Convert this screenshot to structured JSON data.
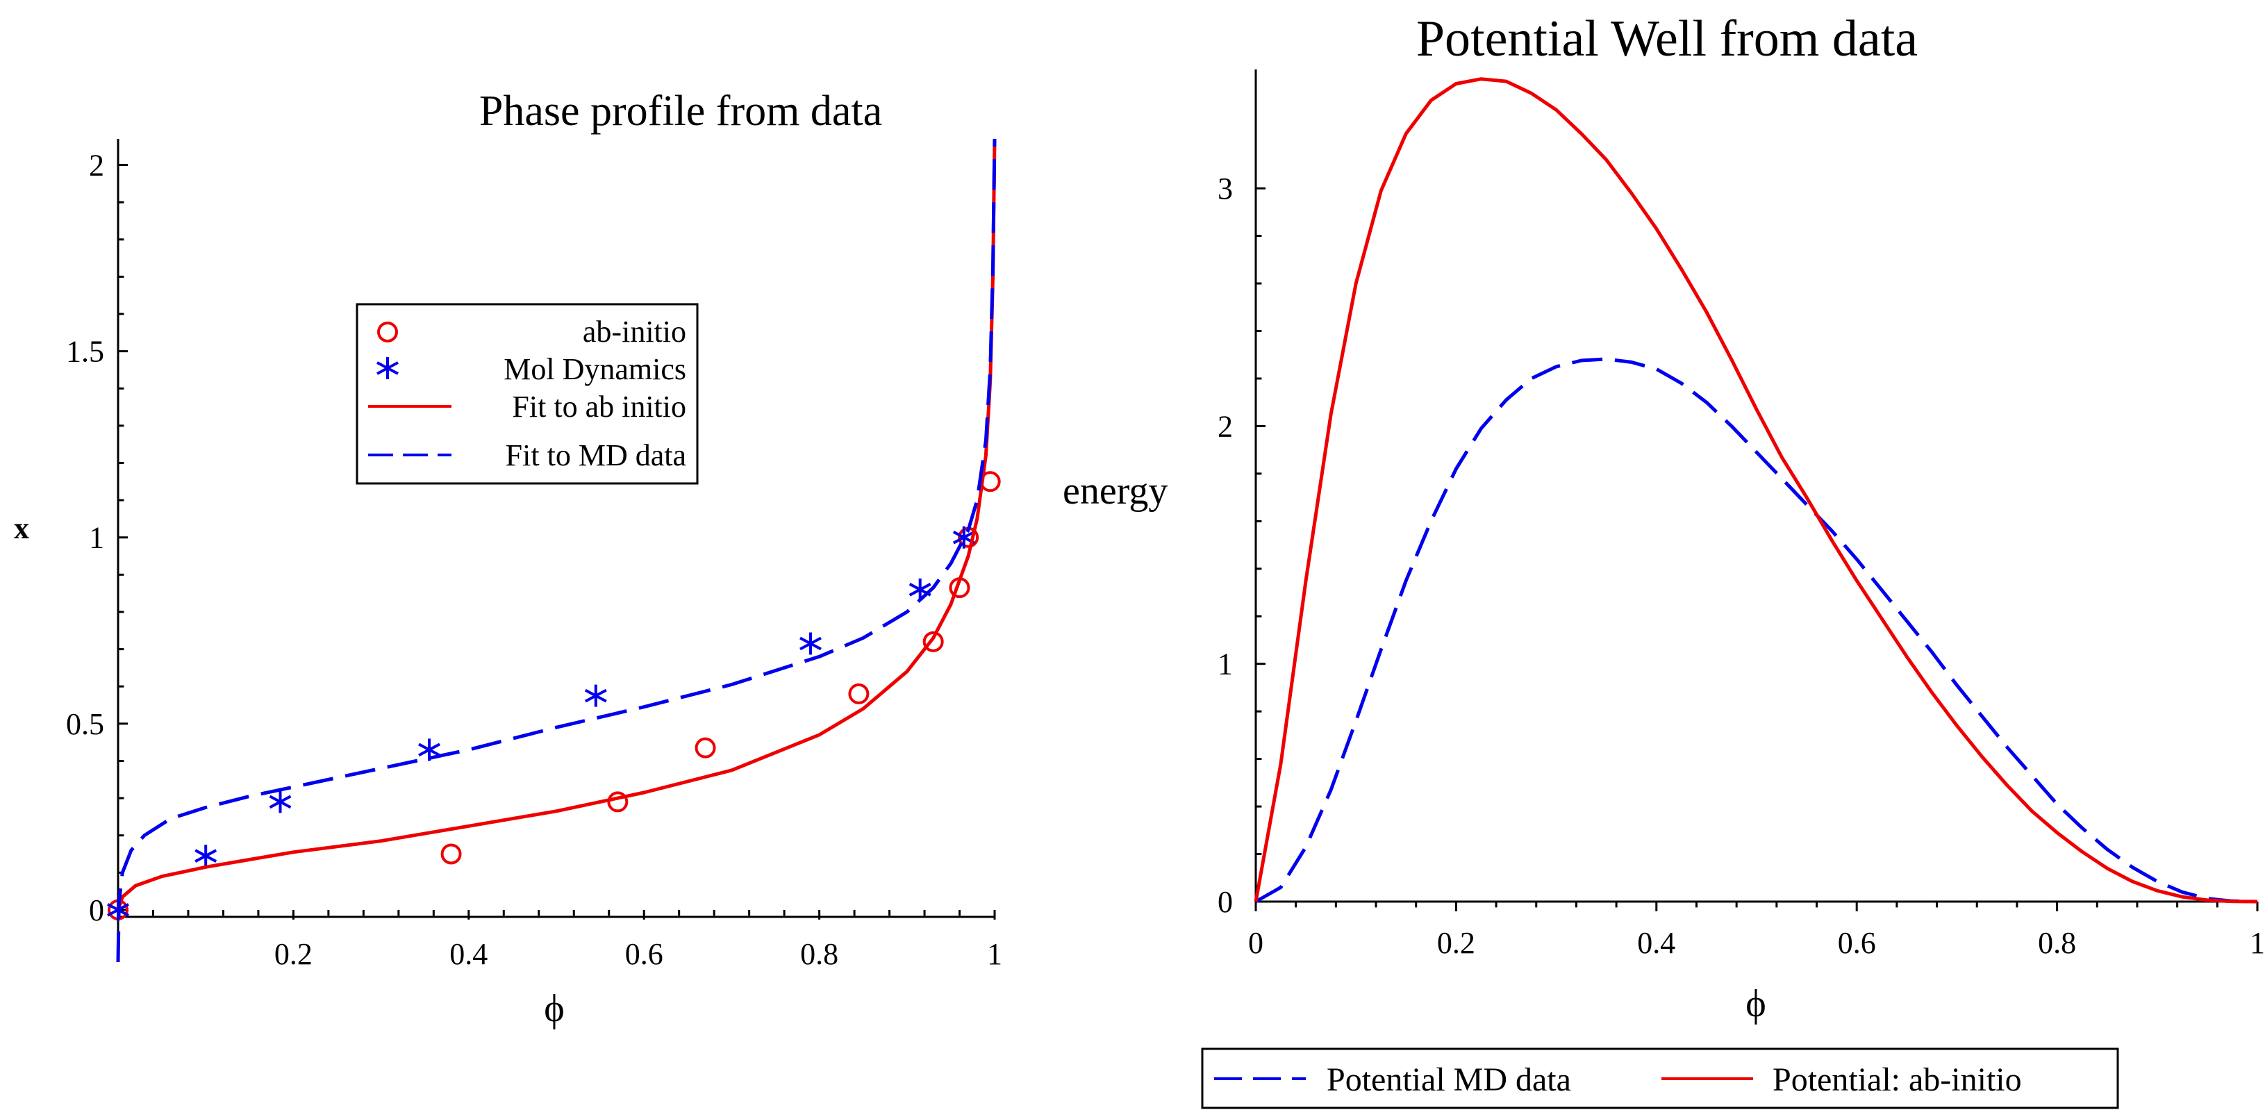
{
  "chart_data": [
    {
      "type": "line",
      "title": "Phase profile from data",
      "xlabel": "ϕ",
      "ylabel": "x",
      "xlim": [
        0,
        1
      ],
      "ylim": [
        -0.14,
        2.07
      ],
      "x_ticks": [
        {
          "value": 0.2,
          "label": "0.2"
        },
        {
          "value": 0.4,
          "label": "0.4"
        },
        {
          "value": 0.6,
          "label": "0.6"
        },
        {
          "value": 0.8,
          "label": "0.8"
        },
        {
          "value": 1,
          "label": "1"
        }
      ],
      "y_ticks": [
        {
          "value": 0,
          "label": "0"
        },
        {
          "value": 0.5,
          "label": "0.5"
        },
        {
          "value": 1,
          "label": "1"
        },
        {
          "value": 1.5,
          "label": "1.5"
        },
        {
          "value": 2,
          "label": "2"
        }
      ],
      "legend_position": "upper-middle",
      "series": [
        {
          "name": "ab-initio",
          "kind": "scatter",
          "marker": "circle",
          "color": "#ee0000",
          "x": [
            0.0,
            0.38,
            0.57,
            0.67,
            0.845,
            0.93,
            0.96,
            0.97,
            0.995
          ],
          "y": [
            0.0,
            0.15,
            0.29,
            0.435,
            0.58,
            0.72,
            0.865,
            1.0,
            1.15
          ]
        },
        {
          "name": "Mol Dynamics",
          "kind": "scatter",
          "marker": "star",
          "color": "#0000ee",
          "x": [
            0.0,
            0.1,
            0.185,
            0.355,
            0.545,
            0.79,
            0.915,
            0.965
          ],
          "y": [
            0.0,
            0.145,
            0.29,
            0.43,
            0.575,
            0.715,
            0.86,
            1.0
          ]
        },
        {
          "name": "Fit to ab initio",
          "kind": "line",
          "dash": "solid",
          "color": "#ee0000",
          "x": [
            0.0,
            0.005,
            0.02,
            0.05,
            0.1,
            0.15,
            0.2,
            0.3,
            0.4,
            0.5,
            0.6,
            0.7,
            0.8,
            0.85,
            0.9,
            0.93,
            0.95,
            0.97,
            0.98,
            0.99,
            0.995,
            0.998,
            1.0
          ],
          "y": [
            0.0,
            0.035,
            0.065,
            0.09,
            0.115,
            0.135,
            0.155,
            0.185,
            0.225,
            0.265,
            0.315,
            0.375,
            0.47,
            0.54,
            0.64,
            0.73,
            0.82,
            0.95,
            1.05,
            1.22,
            1.42,
            1.7,
            2.07
          ]
        },
        {
          "name": "Fit to MD data",
          "kind": "line",
          "dash": "long-dash",
          "color": "#0000ee",
          "x": [
            0.0,
            0.001,
            0.005,
            0.015,
            0.03,
            0.06,
            0.1,
            0.15,
            0.2,
            0.3,
            0.4,
            0.5,
            0.6,
            0.7,
            0.8,
            0.85,
            0.9,
            0.93,
            0.95,
            0.97,
            0.98,
            0.99,
            0.995,
            0.998,
            1.0
          ],
          "y": [
            -0.14,
            0.02,
            0.1,
            0.16,
            0.2,
            0.245,
            0.275,
            0.305,
            0.33,
            0.38,
            0.43,
            0.49,
            0.545,
            0.605,
            0.68,
            0.73,
            0.8,
            0.865,
            0.93,
            1.02,
            1.1,
            1.26,
            1.45,
            1.72,
            2.07
          ]
        }
      ]
    },
    {
      "type": "line",
      "title": "Potential Well from data",
      "xlabel": "ϕ",
      "ylabel": "energy",
      "xlim": [
        0,
        1
      ],
      "ylim": [
        0,
        3.5
      ],
      "x_ticks": [
        {
          "value": 0,
          "label": "0"
        },
        {
          "value": 0.2,
          "label": "0.2"
        },
        {
          "value": 0.4,
          "label": "0.4"
        },
        {
          "value": 0.6,
          "label": "0.6"
        },
        {
          "value": 0.8,
          "label": "0.8"
        },
        {
          "value": 1,
          "label": "1"
        }
      ],
      "y_ticks": [
        {
          "value": 0,
          "label": "0"
        },
        {
          "value": 1,
          "label": "1"
        },
        {
          "value": 2,
          "label": "2"
        },
        {
          "value": 3,
          "label": "3"
        }
      ],
      "legend_position": "bottom",
      "series": [
        {
          "name": "Potential MD data",
          "kind": "line",
          "dash": "long-dash",
          "color": "#0000ee",
          "x": [
            0.0,
            0.025,
            0.05,
            0.075,
            0.1,
            0.125,
            0.15,
            0.175,
            0.2,
            0.225,
            0.25,
            0.275,
            0.3,
            0.325,
            0.35,
            0.375,
            0.4,
            0.425,
            0.45,
            0.475,
            0.5,
            0.525,
            0.55,
            0.575,
            0.6,
            0.625,
            0.65,
            0.675,
            0.7,
            0.725,
            0.75,
            0.775,
            0.8,
            0.825,
            0.85,
            0.875,
            0.9,
            0.925,
            0.95,
            0.975,
            1.0
          ],
          "y": [
            0.0,
            0.06,
            0.23,
            0.47,
            0.76,
            1.06,
            1.35,
            1.6,
            1.82,
            1.99,
            2.11,
            2.2,
            2.25,
            2.276,
            2.282,
            2.269,
            2.24,
            2.18,
            2.1,
            2.0,
            1.89,
            1.78,
            1.67,
            1.56,
            1.44,
            1.31,
            1.18,
            1.05,
            0.91,
            0.78,
            0.65,
            0.53,
            0.41,
            0.31,
            0.22,
            0.145,
            0.085,
            0.04,
            0.013,
            0.002,
            0.0
          ]
        },
        {
          "name": "Potential: ab-initio",
          "kind": "line",
          "dash": "solid",
          "color": "#ee0000",
          "x": [
            0.0,
            0.025,
            0.05,
            0.075,
            0.1,
            0.125,
            0.15,
            0.175,
            0.2,
            0.225,
            0.25,
            0.275,
            0.3,
            0.325,
            0.35,
            0.375,
            0.4,
            0.425,
            0.45,
            0.475,
            0.5,
            0.525,
            0.55,
            0.575,
            0.6,
            0.625,
            0.65,
            0.675,
            0.7,
            0.725,
            0.75,
            0.775,
            0.8,
            0.825,
            0.85,
            0.875,
            0.9,
            0.925,
            0.95,
            0.975,
            1.0
          ],
          "y": [
            0.0,
            0.58,
            1.35,
            2.05,
            2.6,
            2.99,
            3.23,
            3.37,
            3.44,
            3.46,
            3.45,
            3.4,
            3.33,
            3.23,
            3.12,
            2.98,
            2.83,
            2.66,
            2.48,
            2.28,
            2.07,
            1.87,
            1.7,
            1.52,
            1.35,
            1.19,
            1.03,
            0.88,
            0.74,
            0.61,
            0.49,
            0.38,
            0.29,
            0.21,
            0.14,
            0.085,
            0.046,
            0.02,
            0.006,
            0.001,
            0.0
          ]
        }
      ]
    }
  ]
}
